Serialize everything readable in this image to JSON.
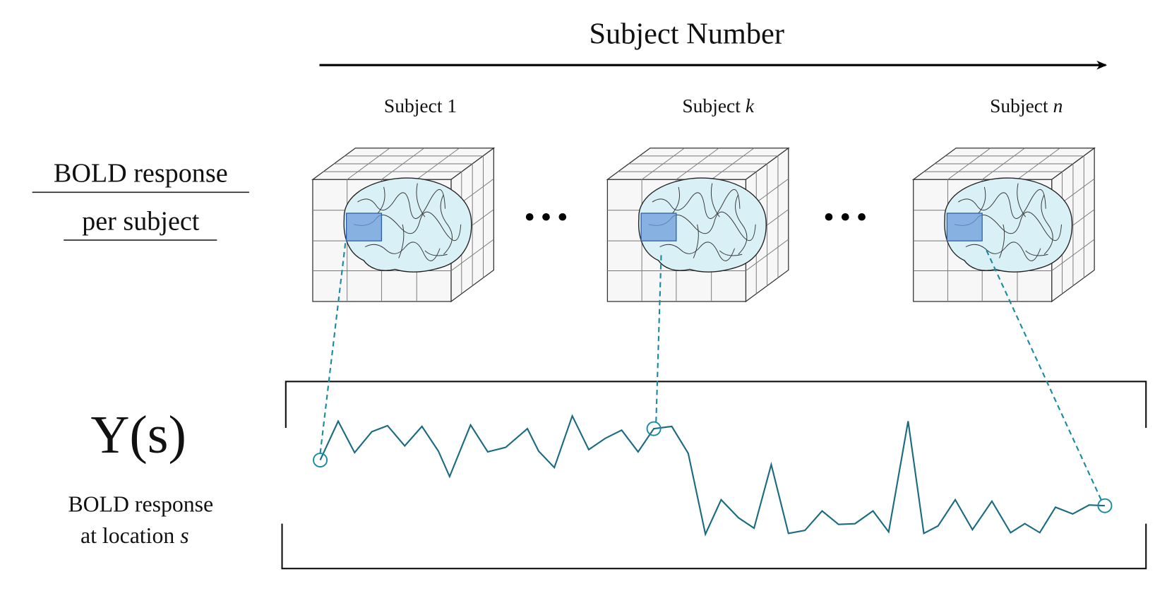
{
  "header": {
    "title": "Subject Number"
  },
  "subjects": [
    {
      "prefix": "Subject",
      "index": "1"
    },
    {
      "prefix": "Subject",
      "index": "k"
    },
    {
      "prefix": "Subject",
      "index": "n"
    }
  ],
  "row_labels": {
    "bold_per_subject": [
      "BOLD response",
      "per subject"
    ],
    "response_symbol": "Y(s)",
    "bold_at_location": [
      "BOLD response",
      "at location",
      "s"
    ]
  }
}
